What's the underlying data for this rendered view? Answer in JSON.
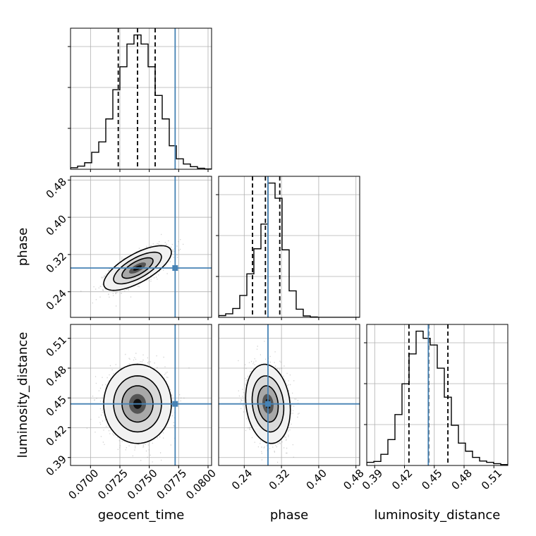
{
  "chart_data": {
    "type": "corner",
    "parameters": [
      "geocent_time",
      "phase",
      "luminosity_distance"
    ],
    "truths": {
      "geocent_time": 0.0772,
      "phase": 0.291,
      "luminosity_distance": 0.444
    },
    "colors": {
      "truth": "#4682b4",
      "histogram": "#000000",
      "grid": "#b0b0b0",
      "samples": "#9a9a9a"
    },
    "grid": true,
    "axes": {
      "geocent_time": {
        "range": [
          0.0683,
          0.0803
        ],
        "ticks": [
          0.07,
          0.0725,
          0.075,
          0.0775,
          0.08
        ],
        "tick_labels": [
          "0.0700",
          "0.0725",
          "0.0750",
          "0.0775",
          "0.0800"
        ]
      },
      "phase": {
        "range": [
          0.185,
          0.488
        ],
        "ticks": [
          0.24,
          0.32,
          0.4,
          0.48
        ],
        "tick_labels": [
          "0.24",
          "0.32",
          "0.40",
          "0.48"
        ]
      },
      "luminosity_distance": {
        "range": [
          0.382,
          0.524
        ],
        "ticks": [
          0.39,
          0.42,
          0.45,
          0.48,
          0.51
        ],
        "tick_labels": [
          "0.39",
          "0.42",
          "0.45",
          "0.48",
          "0.51"
        ]
      }
    },
    "marginals": {
      "geocent_time": {
        "bin_edges": [
          0.0683,
          0.0689,
          0.0695,
          0.0701,
          0.0707,
          0.0713,
          0.0719,
          0.0725,
          0.0731,
          0.0737,
          0.0743,
          0.0749,
          0.0755,
          0.0761,
          0.0767,
          0.0773,
          0.0779,
          0.0785,
          0.0791,
          0.0797,
          0.0803
        ],
        "density": [
          0.6,
          1.2,
          2.5,
          6.5,
          10.5,
          19.3,
          30.5,
          39.3,
          48.0,
          51.5,
          48.0,
          39.3,
          28.3,
          19.3,
          9.0,
          4.0,
          2.0,
          1.0,
          0.4,
          0.1
        ],
        "quantiles": [
          0.07236,
          0.074,
          0.0755
        ]
      },
      "phase": {
        "bin_edges": [
          0.185,
          0.2001,
          0.2153,
          0.2304,
          0.2456,
          0.2607,
          0.2759,
          0.291,
          0.3062,
          0.3213,
          0.3365,
          0.3516,
          0.3668,
          0.3819,
          0.3971,
          0.4122,
          0.4274,
          0.4425,
          0.4577,
          0.4728,
          0.488
        ],
        "density": [
          0.5,
          1.0,
          2.5,
          6.2,
          12.3,
          19.4,
          26.4,
          38.0,
          33.7,
          19.1,
          7.5,
          2.3,
          0.4,
          0.1,
          0,
          0,
          0,
          0,
          0,
          0
        ],
        "quantiles": [
          0.2578,
          0.2855,
          0.3163
        ]
      },
      "luminosity_distance": {
        "bin_edges": [
          0.382,
          0.3891,
          0.3962,
          0.4033,
          0.4104,
          0.4175,
          0.4246,
          0.4317,
          0.4388,
          0.4459,
          0.453,
          0.4601,
          0.4672,
          0.4743,
          0.4814,
          0.4885,
          0.4956,
          0.5027,
          0.5098,
          0.5169,
          0.524
        ],
        "density": [
          0.7,
          0.9,
          2.5,
          5.8,
          11.4,
          18.3,
          25.0,
          30.1,
          28.5,
          27.0,
          21.8,
          15.3,
          9.0,
          5.0,
          3.2,
          1.8,
          1.0,
          0.7,
          0.4,
          0.2
        ],
        "quantiles": [
          0.4245,
          0.4443,
          0.4637
        ]
      }
    },
    "joint": [
      {
        "x": "geocent_time",
        "y": "phase",
        "mean": [
          0.074,
          0.291
        ],
        "std": [
          0.0012,
          0.02
        ],
        "correlation": 0.7
      },
      {
        "x": "geocent_time",
        "y": "luminosity_distance",
        "mean": [
          0.074,
          0.444
        ],
        "std": [
          0.0012,
          0.0166
        ],
        "correlation": 0.0
      },
      {
        "x": "phase",
        "y": "luminosity_distance",
        "mean": [
          0.291,
          0.444
        ],
        "std": [
          0.02,
          0.0166
        ],
        "correlation": -0.15
      }
    ]
  }
}
